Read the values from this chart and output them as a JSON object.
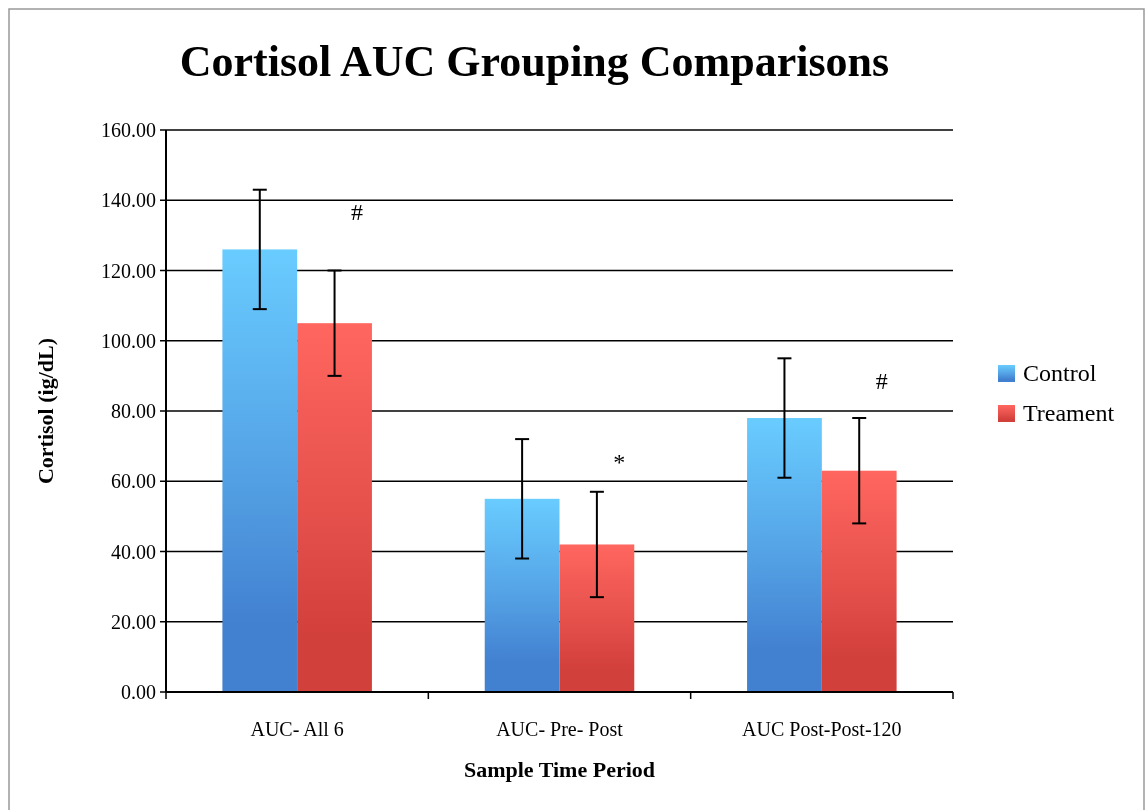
{
  "chart_data": {
    "type": "bar",
    "title": "Cortisol AUC Grouping Comparisons",
    "xlabel": "Sample Time Period",
    "ylabel": "Cortisol (ig/dL)",
    "categories": [
      "AUC- All 6",
      "AUC- Pre- Post",
      "AUC Post-Post-120"
    ],
    "series": [
      {
        "name": "Control",
        "color": "#4280d0",
        "values": [
          126,
          55,
          78
        ],
        "errors": [
          17,
          17,
          17
        ]
      },
      {
        "name": "Treament",
        "color": "#d2403c",
        "values": [
          105,
          42,
          63
        ],
        "errors": [
          15,
          15,
          15
        ]
      }
    ],
    "ylim": [
      0,
      160
    ],
    "yticks": [
      {
        "value": 0,
        "label": "0.00"
      },
      {
        "value": 20,
        "label": "20.00"
      },
      {
        "value": 40,
        "label": "40.00"
      },
      {
        "value": 60,
        "label": "60.00"
      },
      {
        "value": 80,
        "label": "80.00"
      },
      {
        "value": 100,
        "label": "100.00"
      },
      {
        "value": 120,
        "label": "120.00"
      },
      {
        "value": 140,
        "label": "140.00"
      },
      {
        "value": 160,
        "label": "160.00"
      }
    ],
    "grid": "y",
    "legend": "right",
    "annotations": [
      "#",
      "*",
      "#"
    ]
  }
}
